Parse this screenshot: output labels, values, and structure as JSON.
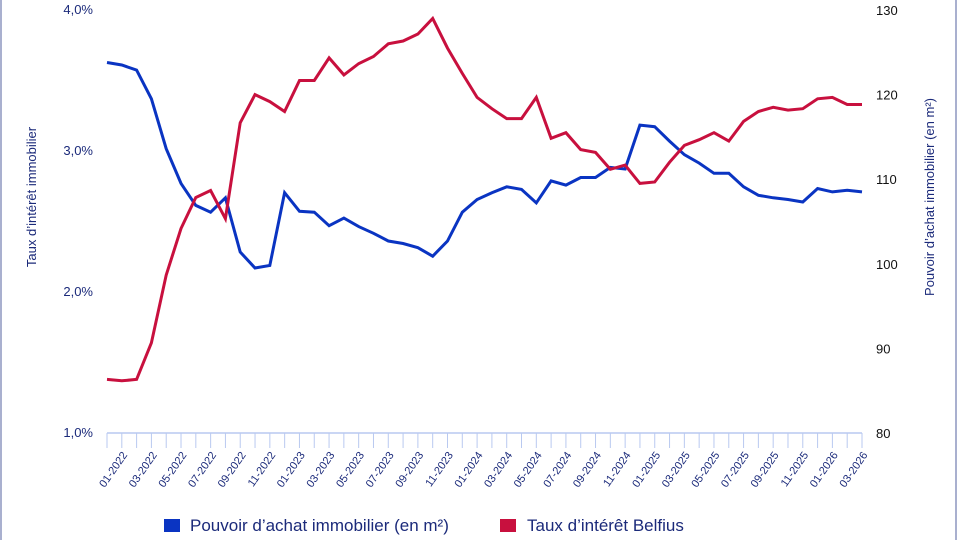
{
  "chart_data": {
    "type": "line",
    "title": "",
    "x": [
      "12-2021",
      "01-2022",
      "02-2022",
      "03-2022",
      "04-2022",
      "05-2022",
      "06-2022",
      "07-2022",
      "08-2022",
      "09-2022",
      "10-2022",
      "11-2022",
      "12-2022",
      "01-2023",
      "02-2023",
      "03-2023",
      "04-2023",
      "05-2023",
      "06-2023",
      "07-2023",
      "08-2023",
      "09-2023",
      "10-2023",
      "11-2023",
      "12-2023",
      "01-2024",
      "02-2024",
      "03-2024",
      "04-2024",
      "05-2024",
      "06-2024",
      "07-2024",
      "08-2024",
      "09-2024",
      "10-2024",
      "11-2024",
      "12-2024",
      "01-2025",
      "02-2025",
      "03-2025",
      "04-2025",
      "05-2025",
      "06-2025",
      "07-2025",
      "08-2025",
      "09-2025",
      "10-2025",
      "11-2025",
      "12-2025",
      "01-2026",
      "02-2026",
      "03-2026"
    ],
    "x_tick_labels": [
      "01-2022",
      "03-2022",
      "05-2022",
      "07-2022",
      "09-2022",
      "11-2022",
      "01-2023",
      "03-2023",
      "05-2023",
      "07-2023",
      "09-2023",
      "11-2023",
      "01-2024",
      "03-2024",
      "05-2024",
      "07-2024",
      "09-2024",
      "11-2024",
      "01-2025",
      "03-2025",
      "05-2025",
      "07-2025",
      "09-2025",
      "11-2025",
      "01-2026",
      "03-2026"
    ],
    "y_left": {
      "label": "Taux d’intérêt immobilier",
      "range": [
        1.0,
        4.0
      ],
      "ticks": [
        "1,0%",
        "2,0%",
        "3,0%",
        "4,0%"
      ]
    },
    "y_right": {
      "label": "Pouvoir d’achat immobilier (en m²)",
      "range": [
        80,
        130
      ],
      "ticks": [
        "80",
        "90",
        "100",
        "110",
        "120",
        "130"
      ]
    },
    "grid": false,
    "legend_placement": "bottom",
    "series": [
      {
        "name": "Pouvoir d’achat immobilier (en m²)",
        "axis": "right",
        "color": "#0a34c2",
        "values": [
          123.8,
          123.5,
          122.9,
          119.5,
          113.6,
          109.5,
          106.9,
          106.1,
          107.8,
          101.4,
          99.5,
          99.8,
          108.4,
          106.2,
          106.1,
          104.5,
          105.4,
          104.4,
          103.6,
          102.7,
          102.4,
          101.9,
          100.9,
          102.7,
          106.1,
          107.6,
          108.4,
          109.1,
          108.8,
          107.2,
          109.8,
          109.3,
          110.2,
          110.2,
          111.4,
          111.2,
          116.4,
          116.2,
          114.5,
          112.9,
          111.9,
          110.7,
          110.7,
          109.1,
          108.1,
          107.8,
          107.6,
          107.3,
          108.9,
          108.5,
          108.7,
          108.5
        ]
      },
      {
        "name": "Taux d’intérêt Belfius",
        "axis": "left",
        "color": "#c8103e",
        "values": [
          1.38,
          1.37,
          1.38,
          1.64,
          2.12,
          2.45,
          2.67,
          2.72,
          2.52,
          3.2,
          3.4,
          3.35,
          3.28,
          3.5,
          3.5,
          3.66,
          3.54,
          3.62,
          3.67,
          3.76,
          3.78,
          3.83,
          3.94,
          3.73,
          3.55,
          3.38,
          3.3,
          3.23,
          3.23,
          3.38,
          3.09,
          3.13,
          3.01,
          2.99,
          2.87,
          2.9,
          2.77,
          2.78,
          2.92,
          3.04,
          3.08,
          3.13,
          3.07,
          3.21,
          3.28,
          3.31,
          3.29,
          3.3,
          3.37,
          3.38,
          3.33,
          3.33
        ]
      }
    ]
  }
}
